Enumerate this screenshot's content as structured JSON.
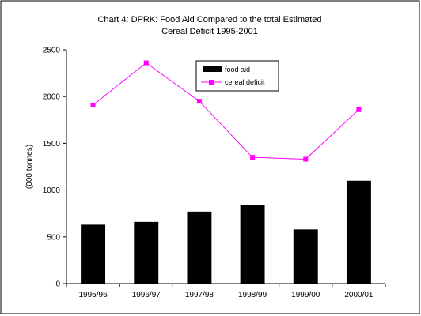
{
  "chart_data": {
    "type": "bar",
    "title_lines": [
      "Chart 4: DPRK: Food Aid Compared to the total Estimated",
      "Cereal Deficit 1995-2001"
    ],
    "xlabel": "",
    "ylabel": "(000 tonnes)",
    "ylim": [
      0,
      2500
    ],
    "yticks": [
      "0",
      "500",
      "1000",
      "1500",
      "2000",
      "2500"
    ],
    "categories": [
      "1995/96",
      "1996/97",
      "1997/98",
      "1998/99",
      "1999/00",
      "2000/01"
    ],
    "series": [
      {
        "name": "food aid",
        "kind": "bar",
        "color": "#000000",
        "values": [
          630,
          660,
          770,
          840,
          580,
          1100
        ]
      },
      {
        "name": "cereal deficit",
        "kind": "line",
        "color": "#ff00ff",
        "values": [
          1910,
          2360,
          1950,
          1350,
          1330,
          1860
        ]
      }
    ],
    "legend_position": "top-right",
    "grid": false
  }
}
